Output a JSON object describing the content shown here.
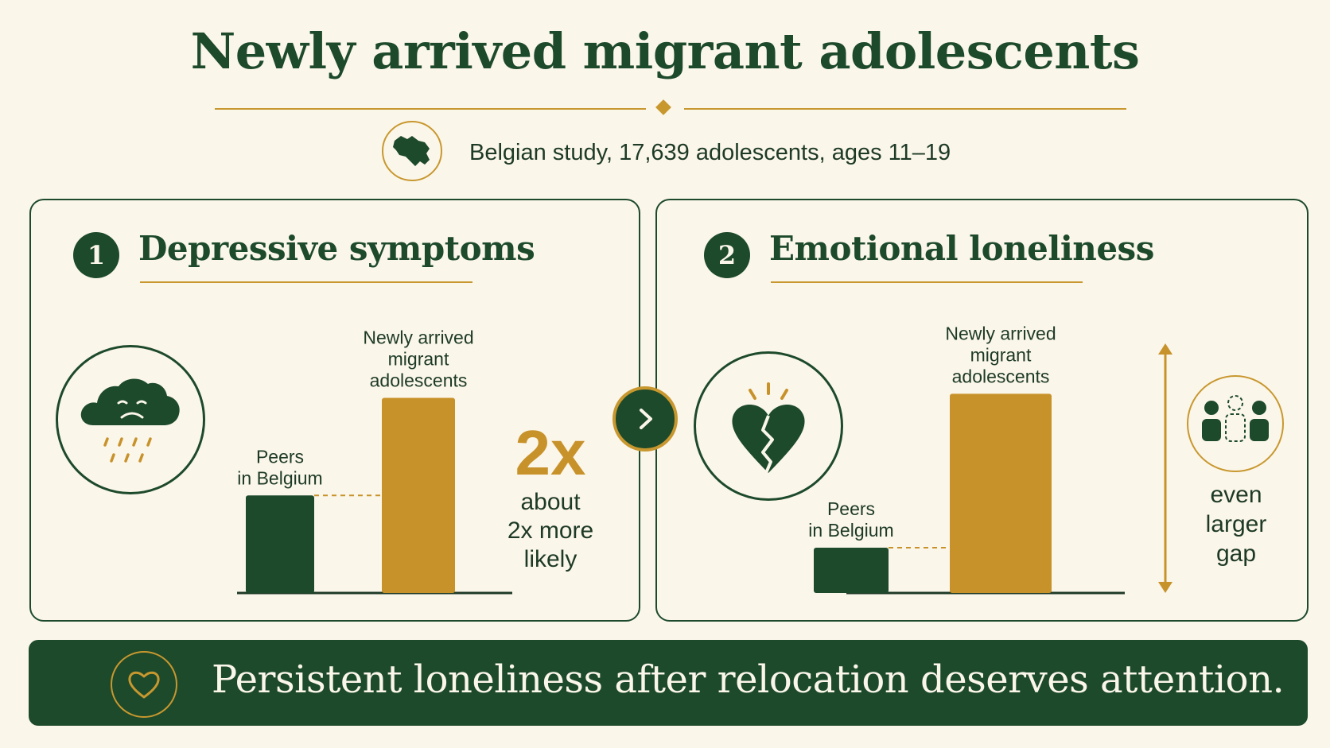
{
  "title": "Newly arrived migrant adolescents",
  "subtitle": "Belgian study, 17,639 adolescents, ages 11–19",
  "colors": {
    "dark_green": "#1d4a2b",
    "gold": "#c8922b",
    "cream": "#fbf6ea"
  },
  "icons": {
    "map": "belgium-map-icon",
    "panel1": "sad-rain-cloud-icon",
    "panel2": "broken-heart-icon",
    "next": "chevron-right-icon",
    "people": "people-gap-icon",
    "banner": "heart-icon"
  },
  "chart_data": [
    {
      "type": "bar",
      "number": "1",
      "title": "Depressive symptoms",
      "categories": [
        "Peers in Belgium",
        "Newly arrived migrant adolescents"
      ],
      "category_lines": [
        [
          "Peers",
          "in Belgium"
        ],
        [
          "Newly arrived",
          "migrant",
          "adolescents"
        ]
      ],
      "values": [
        1,
        2
      ],
      "bar_colors": [
        "#1d4a2b",
        "#c8922b"
      ],
      "callout_big": "2x",
      "callout_lines": [
        "about",
        "2x more",
        "likely"
      ]
    },
    {
      "type": "bar",
      "number": "2",
      "title": "Emotional loneliness",
      "categories": [
        "Peers in Belgium",
        "Newly arrived migrant adolescents"
      ],
      "category_lines": [
        [
          "Peers",
          "in Belgium"
        ],
        [
          "Newly arrived",
          "migrant",
          "adolescents"
        ]
      ],
      "values": [
        1,
        4.4
      ],
      "bar_colors": [
        "#1d4a2b",
        "#c8922b"
      ],
      "callout_lines": [
        "even",
        "larger",
        "gap"
      ]
    }
  ],
  "banner": {
    "text": "Persistent loneliness after relocation deserves attention."
  }
}
